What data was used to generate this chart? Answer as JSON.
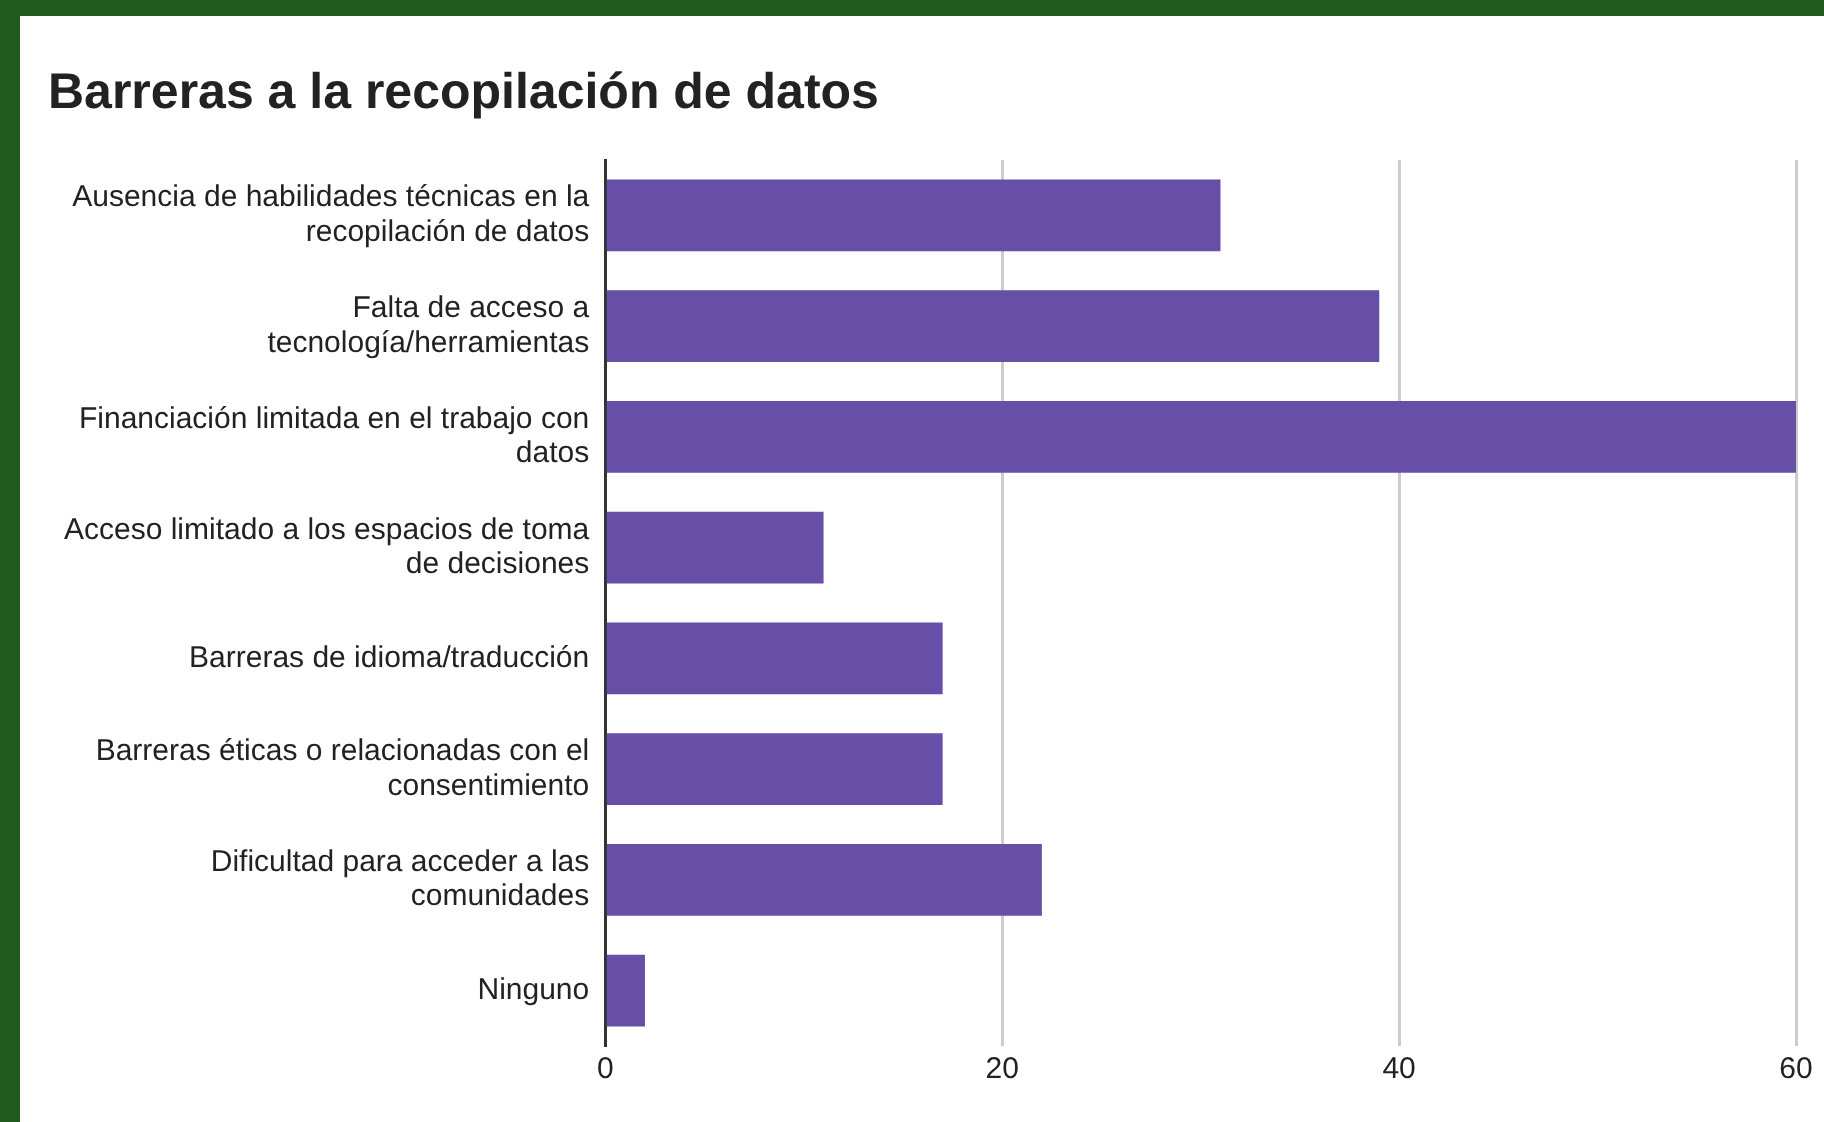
{
  "chart_data": {
    "type": "bar",
    "orientation": "horizontal",
    "title": "Barreras a la recopilación de datos",
    "categories": [
      "Ausencia de habilidades técnicas en la recopilación de datos",
      "Falta de acceso a tecnología/herramientas",
      "Financiación limitada en el trabajo con datos",
      "Acceso limitado a los espacios de toma de decisiones",
      "Barreras de idioma/traducción",
      "Barreras éticas o relacionadas con el consentimiento",
      "Dificultad para acceder a las comunidades",
      "Ninguno"
    ],
    "values": [
      31,
      39,
      60,
      11,
      17,
      17,
      22,
      2
    ],
    "color": "#674ea7",
    "xlim": [
      0,
      60
    ],
    "xticks": [
      0,
      20,
      40,
      60
    ],
    "grid": "x",
    "legend": false
  }
}
